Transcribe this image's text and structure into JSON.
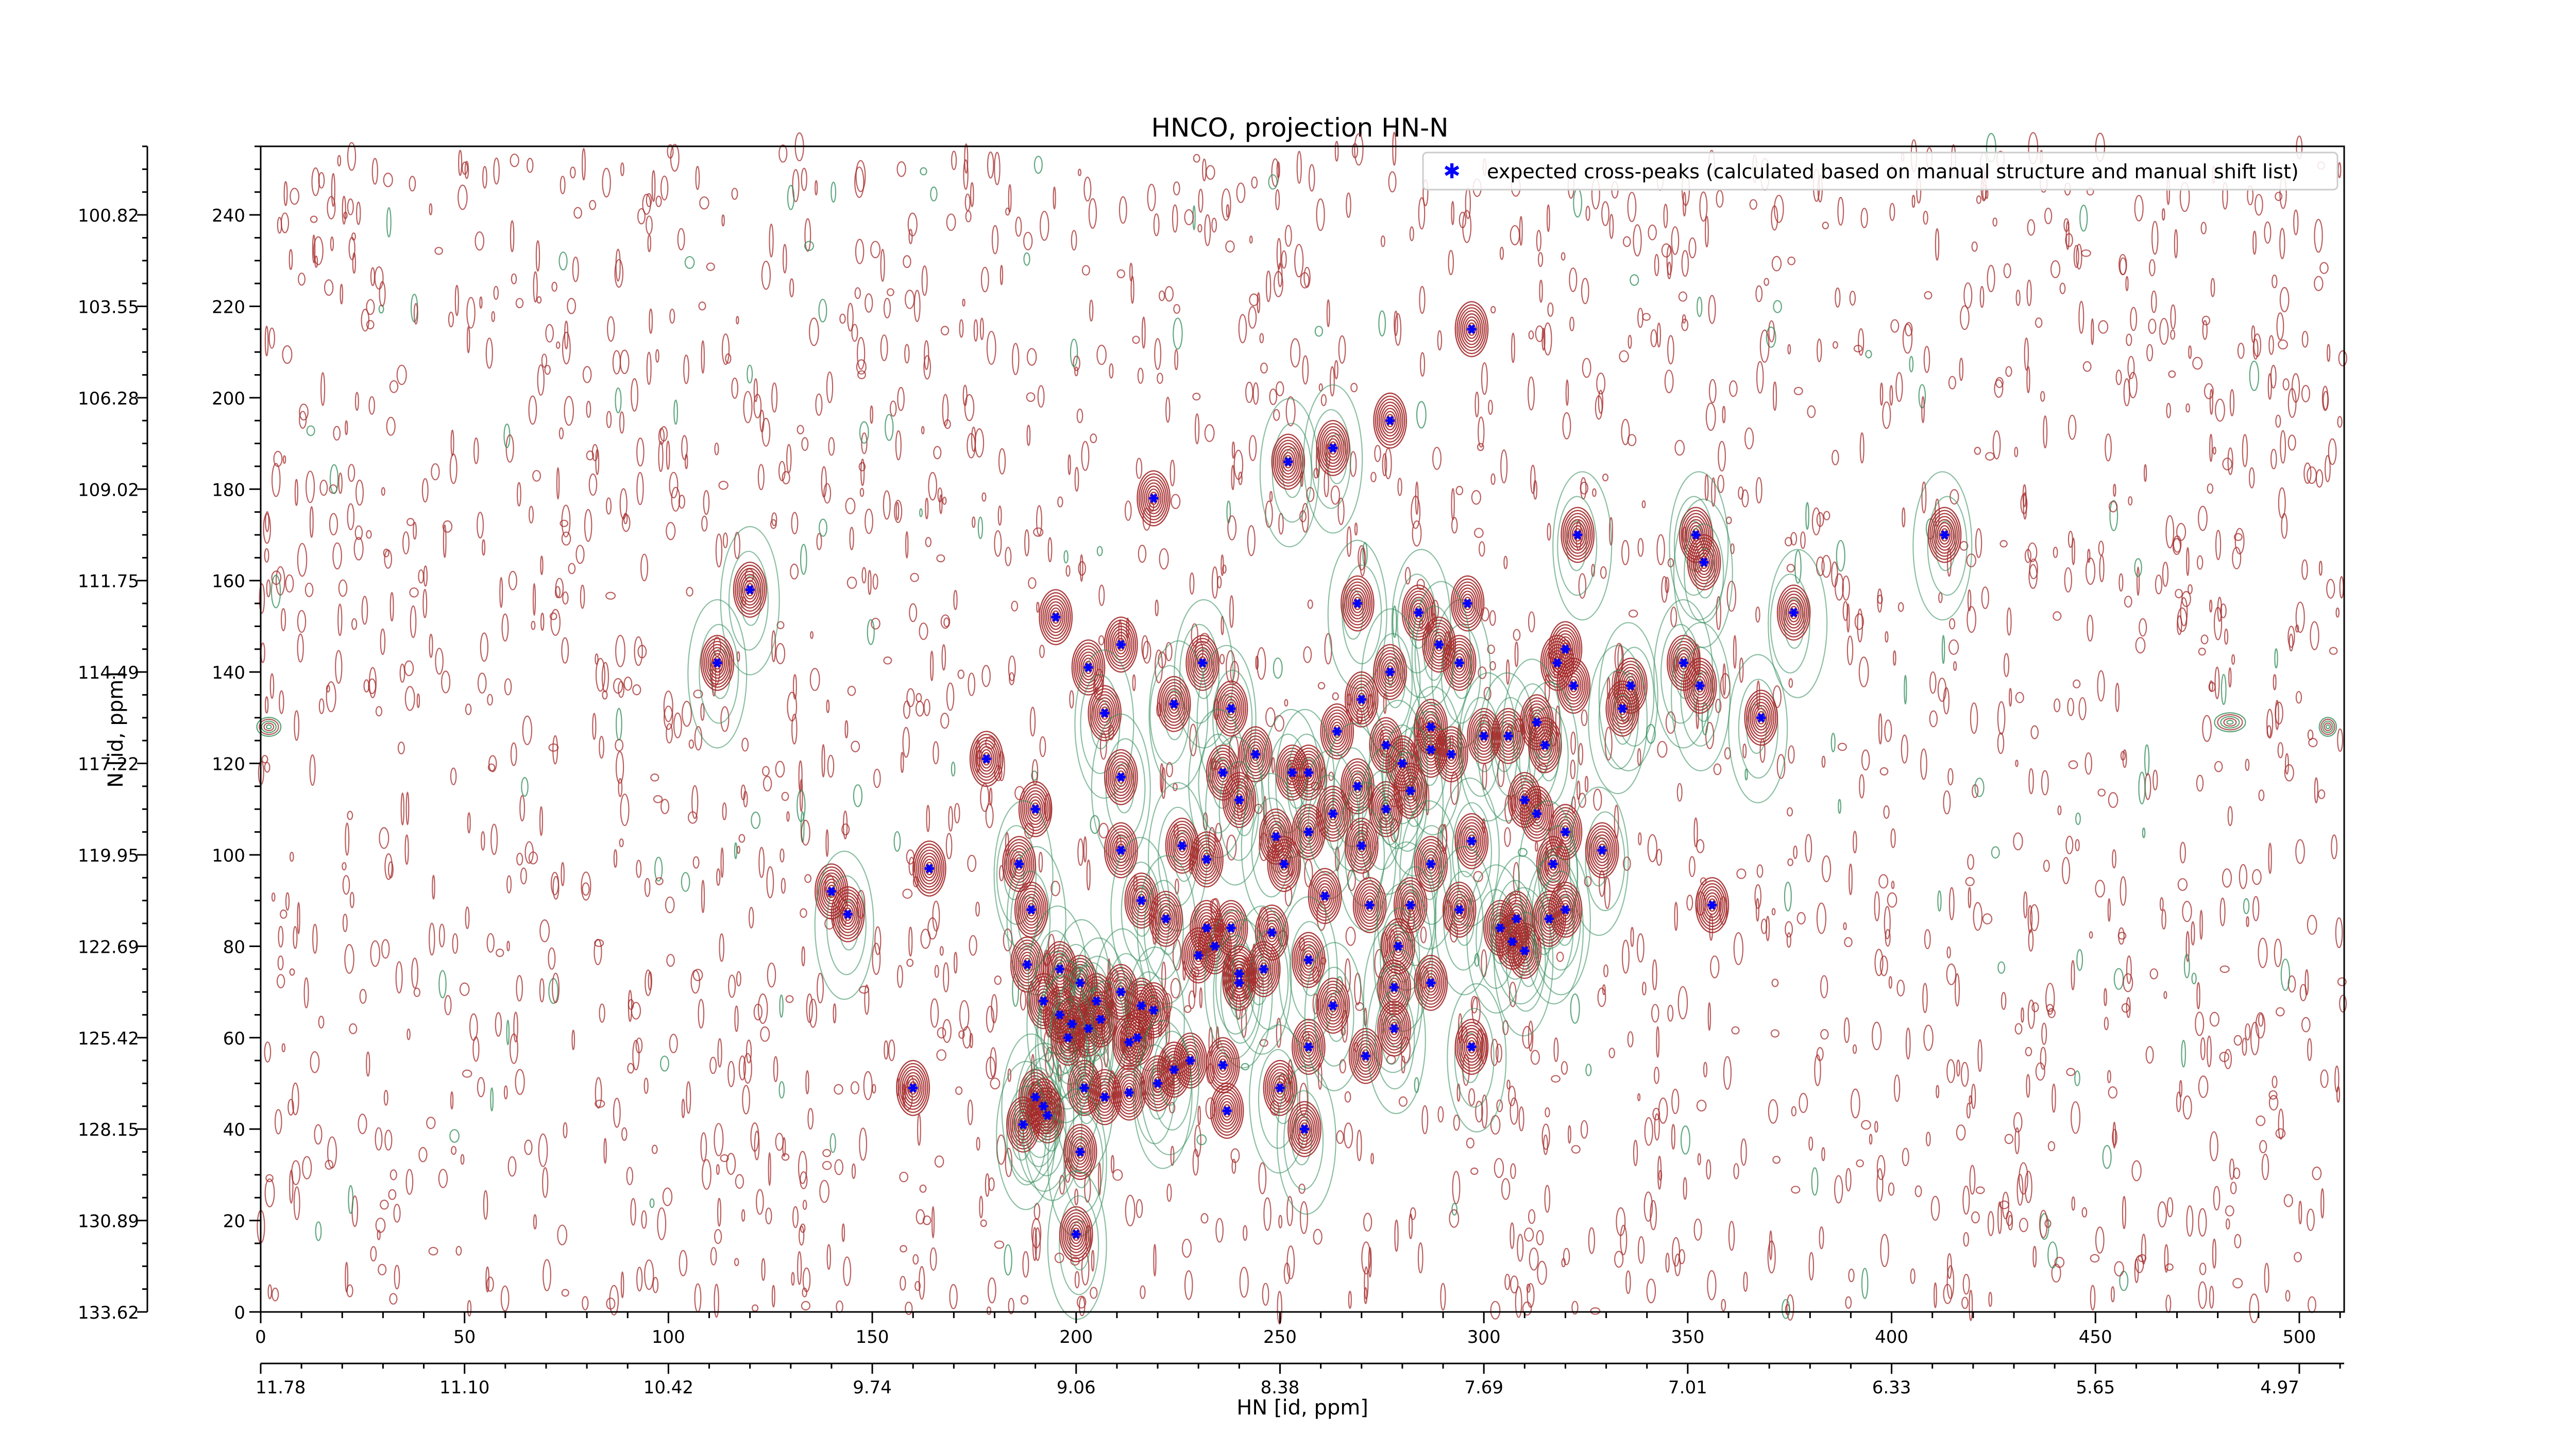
{
  "chart_data": {
    "type": "scatter",
    "title": "HNCO, projection HN-N",
    "xlabel": "HN [id, ppm]",
    "ylabel": "N [id, ppm]",
    "xlim": [
      0,
      511
    ],
    "ylim": [
      0,
      255
    ],
    "x_ticks": [
      0,
      50,
      100,
      150,
      200,
      250,
      300,
      350,
      400,
      450,
      500
    ],
    "y_ticks": [
      0,
      20,
      40,
      60,
      80,
      100,
      120,
      140,
      160,
      180,
      200,
      220,
      240
    ],
    "secondary_x_tick_labels": [
      "11.78",
      "11.10",
      "10.42",
      "9.74",
      "9.06",
      "8.38",
      "7.69",
      "7.01",
      "6.33",
      "5.65",
      "4.97"
    ],
    "secondary_y_tick_labels": [
      "133.62",
      "130.89",
      "128.15",
      "125.42",
      "122.69",
      "119.95",
      "117.22",
      "114.49",
      "111.75",
      "109.02",
      "106.28",
      "103.55",
      "100.82"
    ],
    "legend": {
      "label": "expected cross-peaks (calculated based on manual structure and manual shift list)",
      "position": "top-right"
    },
    "grid": false,
    "colors": {
      "positive_contour": "#a52a2a",
      "negative_contour": "#2e8b57",
      "marker": "#0000ff"
    },
    "series": [
      {
        "name": "expected cross-peaks (calculated based on manual structure and manual shift list)",
        "points": [
          [
            297,
            215
          ],
          [
            277,
            195
          ],
          [
            252,
            186
          ],
          [
            263,
            189
          ],
          [
            219,
            178
          ],
          [
            413,
            170
          ],
          [
            352,
            170
          ],
          [
            323,
            170
          ],
          [
            354,
            164
          ],
          [
            120,
            158
          ],
          [
            269,
            155
          ],
          [
            284,
            153
          ],
          [
            376,
            153
          ],
          [
            195,
            152
          ],
          [
            211,
            146
          ],
          [
            203,
            141
          ],
          [
            231,
            142
          ],
          [
            112,
            142
          ],
          [
            320,
            145
          ],
          [
            277,
            140
          ],
          [
            294,
            142
          ],
          [
            349,
            142
          ],
          [
            353,
            137
          ],
          [
            322,
            137
          ],
          [
            336,
            137
          ],
          [
            318,
            142
          ],
          [
            207,
            131
          ],
          [
            224,
            133
          ],
          [
            238,
            132
          ],
          [
            270,
            134
          ],
          [
            264,
            127
          ],
          [
            287,
            128
          ],
          [
            334,
            132
          ],
          [
            368,
            130
          ],
          [
            287,
            123
          ],
          [
            292,
            122
          ],
          [
            300,
            126
          ],
          [
            306,
            126
          ],
          [
            315,
            124
          ],
          [
            313,
            129
          ],
          [
            244,
            122
          ],
          [
            178,
            121
          ],
          [
            211,
            117
          ],
          [
            236,
            118
          ],
          [
            253,
            118
          ],
          [
            257,
            118
          ],
          [
            269,
            115
          ],
          [
            276,
            124
          ],
          [
            280,
            120
          ],
          [
            276,
            110
          ],
          [
            190,
            110
          ],
          [
            240,
            112
          ],
          [
            313,
            109
          ],
          [
            320,
            105
          ],
          [
            211,
            101
          ],
          [
            226,
            102
          ],
          [
            249,
            104
          ],
          [
            257,
            105
          ],
          [
            263,
            109
          ],
          [
            282,
            114
          ],
          [
            310,
            112
          ],
          [
            251,
            98
          ],
          [
            270,
            102
          ],
          [
            287,
            98
          ],
          [
            297,
            103
          ],
          [
            317,
            98
          ],
          [
            329,
            101
          ],
          [
            232,
            99
          ],
          [
            186,
            98
          ],
          [
            164,
            97
          ],
          [
            140,
            92
          ],
          [
            144,
            87
          ],
          [
            189,
            88
          ],
          [
            216,
            90
          ],
          [
            222,
            86
          ],
          [
            232,
            84
          ],
          [
            230,
            78
          ],
          [
            238,
            84
          ],
          [
            234,
            80
          ],
          [
            248,
            83
          ],
          [
            261,
            91
          ],
          [
            272,
            89
          ],
          [
            282,
            89
          ],
          [
            294,
            88
          ],
          [
            304,
            84
          ],
          [
            308,
            86
          ],
          [
            310,
            79
          ],
          [
            316,
            86
          ],
          [
            320,
            88
          ],
          [
            307,
            81
          ],
          [
            356,
            89
          ],
          [
            188,
            76
          ],
          [
            201,
            72
          ],
          [
            196,
            75
          ],
          [
            205,
            68
          ],
          [
            211,
            70
          ],
          [
            216,
            67
          ],
          [
            219,
            66
          ],
          [
            257,
            77
          ],
          [
            240,
            72
          ],
          [
            240,
            74
          ],
          [
            246,
            75
          ],
          [
            279,
            80
          ],
          [
            278,
            71
          ],
          [
            287,
            72
          ],
          [
            192,
            68
          ],
          [
            196,
            65
          ],
          [
            199,
            63
          ],
          [
            203,
            62
          ],
          [
            206,
            64
          ],
          [
            213,
            59
          ],
          [
            215,
            60
          ],
          [
            228,
            55
          ],
          [
            257,
            58
          ],
          [
            263,
            67
          ],
          [
            271,
            56
          ],
          [
            278,
            62
          ],
          [
            297,
            58
          ],
          [
            236,
            54
          ],
          [
            202,
            49
          ],
          [
            190,
            47
          ],
          [
            193,
            43
          ],
          [
            187,
            41
          ],
          [
            192,
            45
          ],
          [
            160,
            49
          ],
          [
            207,
            47
          ],
          [
            220,
            50
          ],
          [
            250,
            49
          ],
          [
            237,
            44
          ],
          [
            256,
            40
          ],
          [
            201,
            35
          ],
          [
            200,
            17
          ],
          [
            213,
            48
          ],
          [
            224,
            53
          ],
          [
            198,
            60
          ],
          [
            296,
            155
          ],
          [
            289,
            146
          ]
        ]
      }
    ]
  }
}
